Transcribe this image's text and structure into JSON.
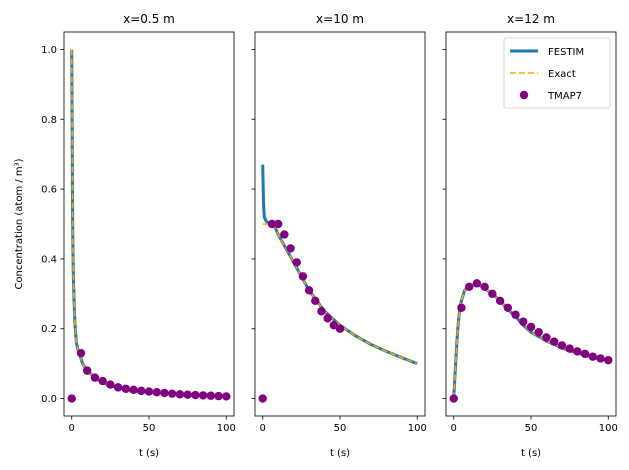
{
  "colors": {
    "festim": "#1f77b4",
    "exact": "#ffa500",
    "tmap7": "#800080"
  },
  "chart_data": {
    "type": "line",
    "ylabel": "Concentration (atom / m³)",
    "ylim": [
      -0.05,
      1.05
    ],
    "yticks": [
      0.0,
      0.2,
      0.4,
      0.6,
      0.8,
      1.0
    ],
    "ytick_labels": [
      "0.0",
      "0.2",
      "0.4",
      "0.6",
      "0.8",
      "1.0"
    ],
    "xlim": [
      -5,
      105
    ],
    "xticks": [
      0,
      50,
      100
    ],
    "xtick_labels": [
      "0",
      "50",
      "100"
    ],
    "sharey": true,
    "legend": {
      "placement": "top-right",
      "panel": 2,
      "entries": [
        "FESTIM",
        "Exact",
        "TMAP7"
      ]
    },
    "panels": [
      {
        "title": "x=0.5 m",
        "xlabel": "t (s)",
        "series": [
          {
            "name": "FESTIM",
            "style": "line",
            "x": [
              0,
              0.3,
              0.6,
              1,
              1.5,
              2,
              3,
              4,
              5,
              7,
              10,
              15,
              20,
              30,
              40,
              50,
              60,
              70,
              80,
              90,
              100
            ],
            "y": [
              1.0,
              0.75,
              0.5,
              0.36,
              0.28,
              0.22,
              0.16,
              0.14,
              0.13,
              0.1,
              0.08,
              0.06,
              0.045,
              0.03,
              0.022,
              0.018,
              0.015,
              0.012,
              0.01,
              0.009,
              0.008
            ]
          },
          {
            "name": "Exact",
            "style": "dashed",
            "x": [
              0,
              0.3,
              0.6,
              1,
              1.5,
              2,
              3,
              4,
              5,
              7,
              10,
              15,
              20,
              30,
              40,
              50,
              60,
              70,
              80,
              90,
              100
            ],
            "y": [
              1.0,
              0.75,
              0.5,
              0.36,
              0.28,
              0.22,
              0.16,
              0.14,
              0.13,
              0.1,
              0.08,
              0.06,
              0.045,
              0.03,
              0.022,
              0.018,
              0.015,
              0.012,
              0.01,
              0.009,
              0.008
            ]
          },
          {
            "name": "TMAP7",
            "style": "markers",
            "x": [
              0,
              6,
              10,
              15,
              20,
              25,
              30,
              35,
              40,
              45,
              50,
              55,
              60,
              65,
              70,
              75,
              80,
              85,
              90,
              95,
              100
            ],
            "y": [
              0.0,
              0.13,
              0.08,
              0.06,
              0.05,
              0.04,
              0.032,
              0.028,
              0.025,
              0.022,
              0.02,
              0.018,
              0.016,
              0.014,
              0.012,
              0.011,
              0.01,
              0.009,
              0.008,
              0.007,
              0.006
            ]
          }
        ]
      },
      {
        "title": "x=10 m",
        "xlabel": "t (s)",
        "series": [
          {
            "name": "FESTIM",
            "style": "line",
            "x": [
              0,
              0.5,
              1,
              2,
              3,
              5,
              8,
              10,
              15,
              20,
              25,
              30,
              35,
              40,
              45,
              50,
              60,
              70,
              80,
              90,
              100
            ],
            "y": [
              0.67,
              0.56,
              0.52,
              0.51,
              0.505,
              0.5,
              0.49,
              0.47,
              0.43,
              0.39,
              0.35,
              0.31,
              0.28,
              0.25,
              0.23,
              0.21,
              0.18,
              0.155,
              0.135,
              0.117,
              0.1
            ]
          },
          {
            "name": "Exact",
            "style": "dashed",
            "x": [
              0,
              2,
              5,
              8,
              10,
              15,
              20,
              25,
              30,
              35,
              40,
              45,
              50,
              60,
              70,
              80,
              90,
              100
            ],
            "y": [
              0.5,
              0.5,
              0.5,
              0.49,
              0.47,
              0.43,
              0.39,
              0.35,
              0.31,
              0.28,
              0.25,
              0.23,
              0.21,
              0.18,
              0.155,
              0.135,
              0.117,
              0.1
            ]
          },
          {
            "name": "TMAP7",
            "style": "markers",
            "x": [
              0,
              6,
              10,
              14,
              18,
              22,
              26,
              30,
              34,
              38,
              42,
              46,
              50
            ],
            "y": [
              0.0,
              0.5,
              0.5,
              0.47,
              0.43,
              0.39,
              0.35,
              0.31,
              0.28,
              0.25,
              0.23,
              0.21,
              0.2
            ]
          }
        ]
      },
      {
        "title": "x=12 m",
        "xlabel": "t (s)",
        "series": [
          {
            "name": "FESTIM",
            "style": "line",
            "x": [
              0,
              1,
              2,
              3,
              4,
              5,
              7,
              10,
              15,
              20,
              25,
              30,
              35,
              40,
              45,
              50,
              60,
              70,
              80,
              90,
              100
            ],
            "y": [
              0.0,
              0.08,
              0.16,
              0.22,
              0.26,
              0.28,
              0.31,
              0.32,
              0.33,
              0.315,
              0.3,
              0.28,
              0.255,
              0.235,
              0.21,
              0.19,
              0.165,
              0.145,
              0.13,
              0.118,
              0.108
            ]
          },
          {
            "name": "Exact",
            "style": "dashed",
            "x": [
              0,
              1,
              2,
              3,
              4,
              5,
              7,
              10,
              15,
              20,
              25,
              30,
              35,
              40,
              45,
              50,
              60,
              70,
              80,
              90,
              100
            ],
            "y": [
              0.0,
              0.08,
              0.16,
              0.22,
              0.26,
              0.28,
              0.31,
              0.32,
              0.33,
              0.315,
              0.3,
              0.28,
              0.255,
              0.235,
              0.21,
              0.19,
              0.165,
              0.145,
              0.13,
              0.118,
              0.108
            ]
          },
          {
            "name": "TMAP7",
            "style": "markers",
            "x": [
              0,
              5,
              10,
              15,
              20,
              25,
              30,
              35,
              40,
              45,
              50,
              55,
              60,
              65,
              70,
              75,
              80,
              85,
              90,
              95,
              100
            ],
            "y": [
              0.0,
              0.26,
              0.32,
              0.33,
              0.32,
              0.3,
              0.28,
              0.26,
              0.24,
              0.22,
              0.205,
              0.19,
              0.175,
              0.163,
              0.152,
              0.143,
              0.135,
              0.128,
              0.12,
              0.115,
              0.11
            ]
          }
        ]
      }
    ]
  }
}
